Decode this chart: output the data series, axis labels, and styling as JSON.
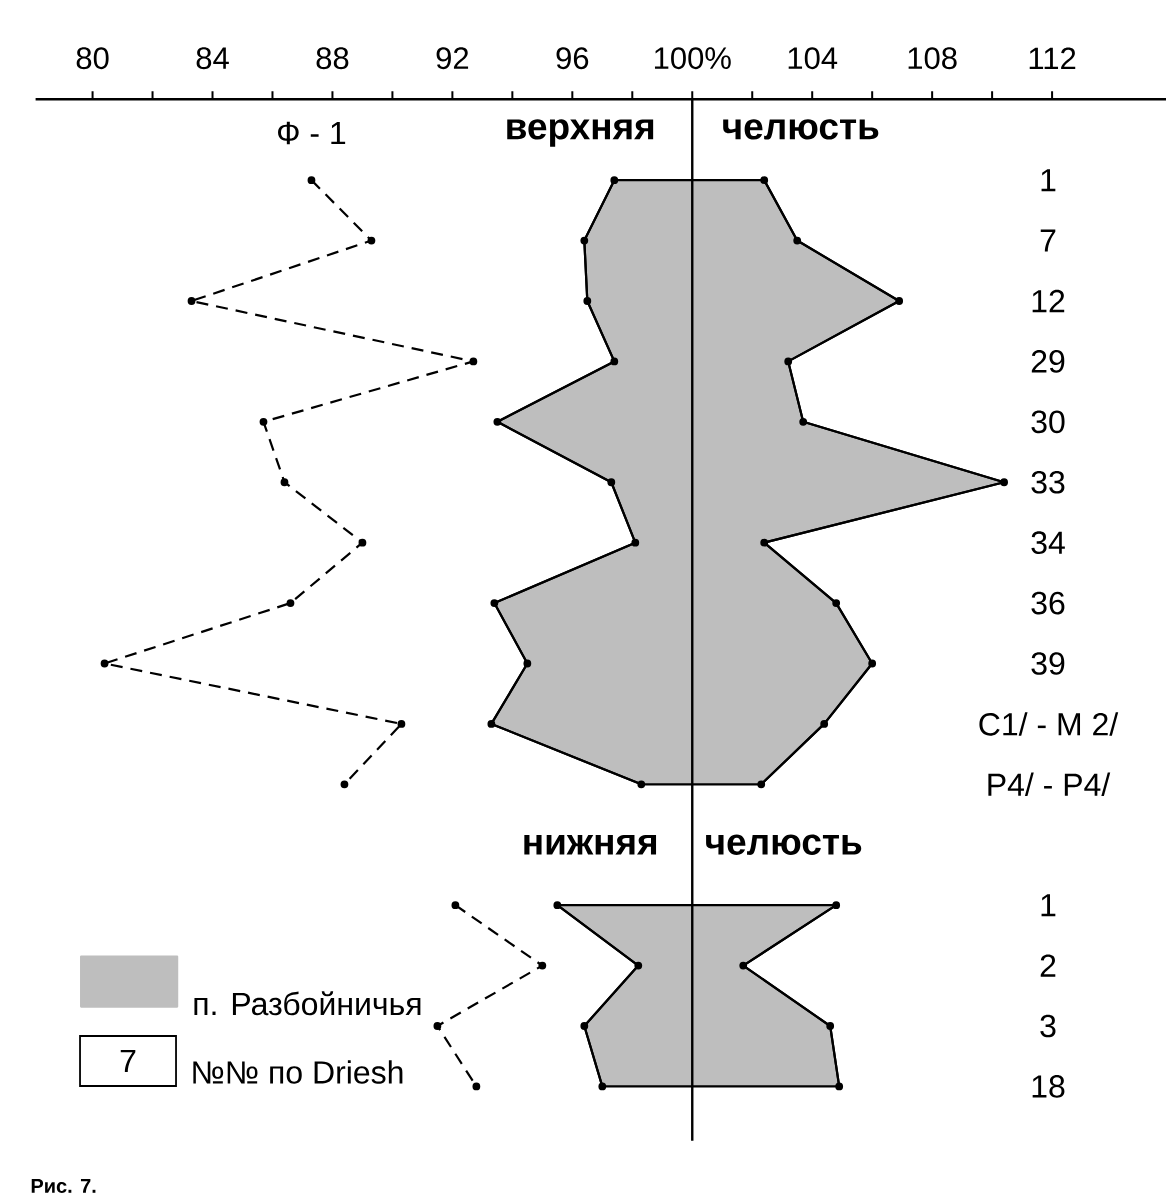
{
  "chart_data": {
    "type": "line",
    "orientation": "horizontal",
    "categories": [
      "1",
      "7",
      "12",
      "29",
      "30",
      "33",
      "34",
      "36",
      "39",
      "C1/ - M 2/",
      "P4/ - P4/",
      null,
      "1",
      "2",
      "3",
      "18"
    ],
    "series": [
      {
        "name": "п. Разбойничья",
        "type": "area",
        "color": "#bebebe",
        "values": [
          null,
          null,
          null,
          null,
          null,
          null,
          null,
          null,
          null,
          null,
          null,
          null,
          null,
          null,
          null,
          null
        ],
        "lower": [
          97.4,
          96.4,
          96.5,
          97.4,
          93.5,
          97.3,
          98.1,
          93.4,
          94.5,
          93.3,
          98.3,
          null,
          95.5,
          98.2,
          96.4,
          97.0
        ],
        "upper": [
          102.4,
          103.5,
          106.9,
          103.2,
          103.7,
          110.4,
          102.4,
          104.8,
          106.0,
          104.4,
          102.3,
          null,
          104.8,
          101.7,
          104.6,
          104.9
        ]
      },
      {
        "color": "#000000",
        "line_style": "solid",
        "values": [
          97.4,
          96.4,
          96.5,
          97.4,
          93.5,
          97.3,
          98.1,
          93.4,
          94.5,
          93.3,
          98.3,
          null,
          95.5,
          98.2,
          96.4,
          97.0
        ]
      },
      {
        "color": "#000000",
        "line_style": "solid",
        "values": [
          102.4,
          103.5,
          106.9,
          103.2,
          103.7,
          110.4,
          102.4,
          104.8,
          106.0,
          104.4,
          102.3,
          null,
          104.8,
          101.7,
          104.6,
          104.9
        ]
      },
      {
        "name": "Ф - 1",
        "type": "line",
        "color": "#000000",
        "line_style": "dashed",
        "values": [
          87.3,
          89.3,
          83.3,
          92.7,
          85.7,
          86.4,
          89.0,
          86.6,
          80.4,
          90.3,
          88.4,
          null,
          92.1,
          95.0,
          91.5,
          92.8
        ]
      }
    ],
    "xlim": [
      78.1,
      115.8
    ],
    "xticks": [
      80,
      {
        "value": 82,
        "label": null
      },
      84,
      {
        "value": 86,
        "label": null
      },
      88,
      {
        "value": 90,
        "label": null
      },
      92,
      {
        "value": 94,
        "label": null
      },
      96,
      {
        "value": 98,
        "label": null
      },
      {
        "value": 100,
        "label": "100%"
      },
      {
        "value": 102,
        "label": null
      },
      104,
      {
        "value": 106,
        "label": null
      },
      108,
      {
        "value": 110,
        "label": null
      },
      112
    ],
    "ref_lines": [
      {
        "axis": "x",
        "value": 100,
        "color": "#000000"
      }
    ],
    "marker": "circle",
    "legend": "bottom left",
    "annotations": [
      "верхняя челюсть",
      "нижняя челюсть",
      "7",
      "№№ по Driesh",
      "Рис. 7."
    ]
  }
}
